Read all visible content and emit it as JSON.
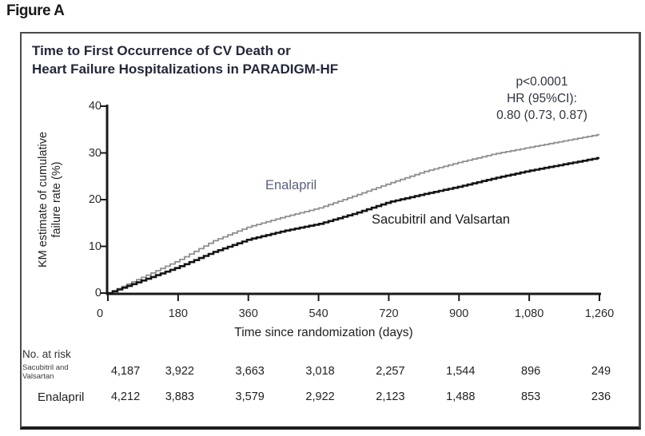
{
  "figure_label": "Figure A",
  "chart": {
    "title_line1": "Time to First Occurrence of CV Death or",
    "title_line2": "Heart Failure Hospitalizations in PARADIGM-HF",
    "annotation_line1": "p<0.0001",
    "annotation_line2": "HR (95%CI):",
    "annotation_line3": "0.80 (0.73, 0.87)",
    "ylabel_line1": "KM estimate of cumulative",
    "ylabel_line2": "failure rate (%)",
    "xlabel": "Time since randomization (days)",
    "series_labels": {
      "enalapril": "Enalapril",
      "sacubitril": "Sacubitril and Valsartan"
    }
  },
  "chart_data": {
    "type": "line",
    "title": "Time to First Occurrence of CV Death or Heart Failure Hospitalizations in PARADIGM-HF",
    "xlabel": "Time since randomization (days)",
    "ylabel": "KM estimate of cumulative failure rate (%)",
    "xlim": [
      0,
      1260
    ],
    "ylim": [
      0,
      40
    ],
    "grid": false,
    "x_tick_labels": [
      "0",
      "180",
      "360",
      "540",
      "720",
      "900",
      "1,080",
      "1,260"
    ],
    "x_tick_values": [
      0,
      180,
      360,
      540,
      720,
      900,
      1080,
      1260
    ],
    "y_tick_labels": [
      "0",
      "10",
      "20",
      "30",
      "40"
    ],
    "y_tick_values": [
      0,
      10,
      20,
      30,
      40
    ],
    "x": [
      0,
      90,
      180,
      270,
      360,
      450,
      540,
      630,
      720,
      810,
      900,
      990,
      1080,
      1170,
      1260
    ],
    "series": [
      {
        "name": "Enalapril",
        "color": "#8f8f8f",
        "stroke_width": 1.8,
        "values": [
          0,
          3.5,
          7.0,
          11.2,
          14.2,
          16.3,
          18.2,
          20.8,
          23.5,
          26.0,
          28.0,
          29.8,
          31.2,
          32.6,
          34.0
        ]
      },
      {
        "name": "Sacubitril and Valsartan",
        "color": "#141414",
        "stroke_width": 2.6,
        "values": [
          0,
          2.8,
          5.6,
          8.8,
          11.5,
          13.3,
          14.8,
          17.0,
          19.5,
          21.2,
          22.8,
          24.6,
          26.2,
          27.6,
          29.0
        ]
      }
    ],
    "annotations": [
      "p<0.0001",
      "HR (95%CI):",
      "0.80 (0.73, 0.87)"
    ],
    "legend_position": "inline-labels"
  },
  "at_risk": {
    "heading": "No. at risk",
    "rows": [
      {
        "label_line1": "Sacubitril and",
        "label_line2": "Valsartan",
        "counts": [
          "4,187",
          "3,922",
          "3,663",
          "3,018",
          "2,257",
          "1,544",
          "896",
          "249"
        ]
      },
      {
        "label_line1": "Enalapril",
        "label_line2": "",
        "counts": [
          "4,212",
          "3,883",
          "3,579",
          "2,922",
          "2,123",
          "1,488",
          "853",
          "236"
        ]
      }
    ]
  },
  "colors": {
    "enalapril_line": "#8f8f8f",
    "sacubitril_line": "#141414",
    "axis": "#1a1a1a",
    "panel_border": "#4a4a4a",
    "text": "#23262f"
  }
}
